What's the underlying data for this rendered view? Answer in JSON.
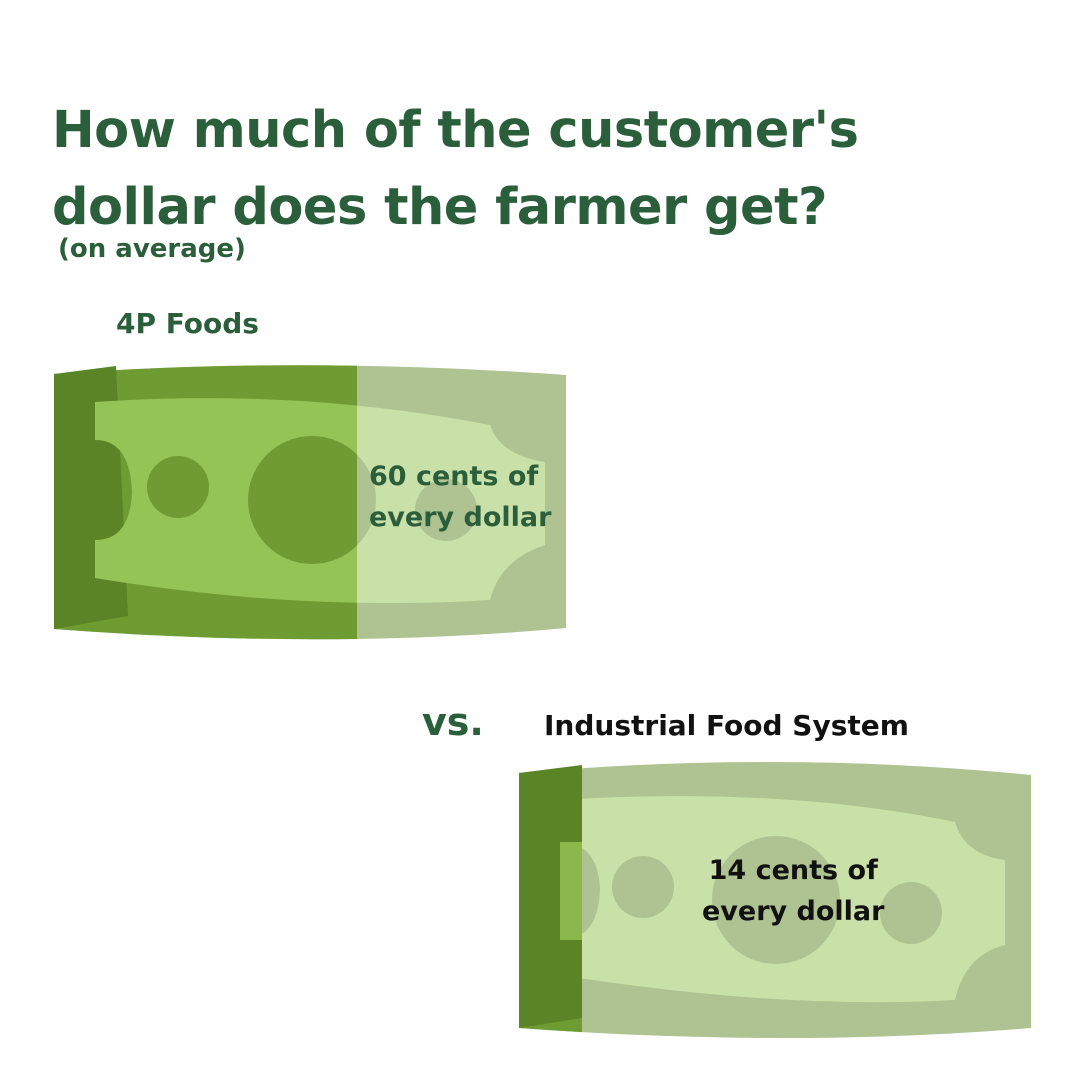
{
  "title": {
    "line1": "How much of the customer's",
    "line2": "dollar does the farmer get?"
  },
  "subtitle": "(on average)",
  "comparison": {
    "vs_label": "vs.",
    "farmer_share_4p_cents": 60,
    "farmer_share_industrial_cents": 14,
    "four_p": {
      "label": "4P Foods",
      "text_line1": "60 cents of",
      "text_line2": "every dollar"
    },
    "industrial": {
      "label": "Industrial Food System",
      "text_line1": "14 cents of",
      "text_line2": "every dollar"
    }
  },
  "colors": {
    "title_green": "#2b5e3a",
    "bill_dark": "#5a8425",
    "bill_mid": "#6e9c33",
    "bill_light": "#94c356",
    "faded_light": "#c9e0a9",
    "faded_mid": "#aec391"
  }
}
